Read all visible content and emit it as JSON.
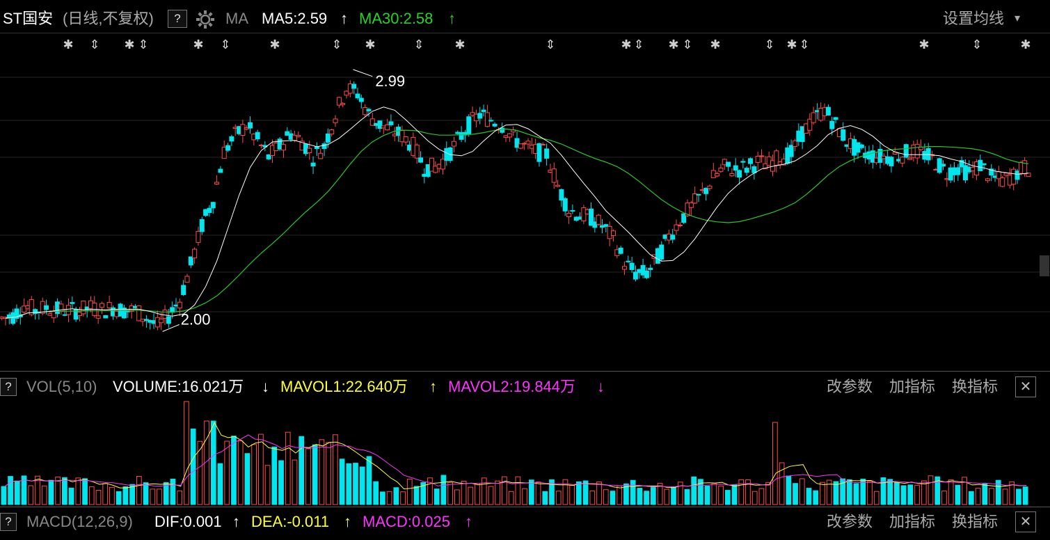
{
  "header": {
    "name": "ST国安",
    "mode": "(日线,不复权)",
    "help": "?",
    "ma_label": "MA",
    "ma5": "MA5:2.59",
    "ma30": "MA30:2.58",
    "setting": "设置均线",
    "up_arrow": "↑",
    "down_arrow": "↓",
    "dropdown_arrow": "▾"
  },
  "annotations": {
    "high": "2.99",
    "low": "2.00"
  },
  "vol_panel": {
    "help": "?",
    "title": "VOL(5,10)",
    "volume": "VOLUME:16.021万",
    "mavol1": "MAVOL1:22.640万",
    "mavol2": "MAVOL2:19.844万",
    "btn1": "改参数",
    "btn2": "加指标",
    "btn3": "换指标",
    "close": "✕"
  },
  "macd_panel": {
    "help": "?",
    "title": "MACD(12,26,9)",
    "dif": "DIF:0.001",
    "dea": "DEA:-0.011",
    "macd": "MACD:0.025",
    "btn1": "改参数",
    "btn2": "加指标",
    "btn3": "换指标",
    "close": "✕"
  },
  "colors": {
    "up": "#ff4a4a",
    "down": "#00e5ee",
    "ma5": "#ffffff",
    "ma30": "#28c828",
    "mavol1": "#ffff33",
    "mavol2": "#ff33ff",
    "price_bg": "#000000"
  },
  "chart_data": {
    "type": "candlestick",
    "price_range": [
      1.88,
      3.1
    ],
    "high_point": 2.99,
    "low_point": 2.0,
    "close_points": [
      2.05,
      2.06,
      2.1,
      2.08,
      2.09,
      2.08,
      2.08,
      2.08,
      2.09,
      2.08,
      2.09,
      2.08,
      2.08,
      2.05,
      2.02,
      2.06,
      2.12,
      2.25,
      2.4,
      2.5,
      2.68,
      2.74,
      2.78,
      2.72,
      2.66,
      2.7,
      2.75,
      2.72,
      2.66,
      2.7,
      2.82,
      2.92,
      2.9,
      2.82,
      2.78,
      2.76,
      2.74,
      2.7,
      2.62,
      2.62,
      2.66,
      2.72,
      2.78,
      2.82,
      2.8,
      2.78,
      2.73,
      2.7,
      2.68,
      2.67,
      2.55,
      2.46,
      2.44,
      2.43,
      2.4,
      2.35,
      2.26,
      2.22,
      2.22,
      2.28,
      2.36,
      2.42,
      2.47,
      2.52,
      2.58,
      2.62,
      2.61,
      2.62,
      2.64,
      2.63,
      2.66,
      2.67,
      2.75,
      2.8,
      2.84,
      2.78,
      2.72,
      2.68,
      2.67,
      2.66,
      2.66,
      2.67,
      2.68,
      2.67,
      2.64,
      2.6,
      2.62,
      2.6,
      2.63,
      2.58,
      2.57,
      2.59,
      2.62
    ]
  }
}
